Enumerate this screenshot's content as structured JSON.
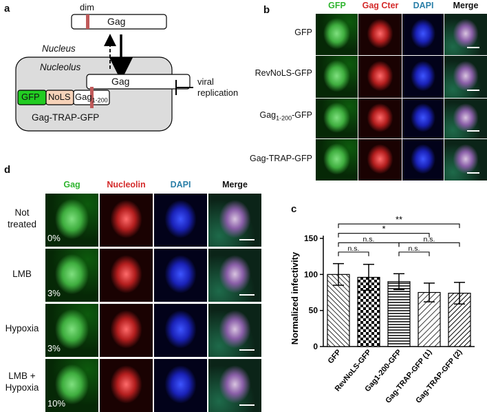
{
  "panel_letters": {
    "a": "a",
    "b": "b",
    "c": "c",
    "d": "d"
  },
  "panel_a": {
    "dim_label": "dim",
    "gag_top": "Gag",
    "nucleus_label": "Nucleus",
    "nucleolus_label": "Nucleolus",
    "gag_inner": "Gag",
    "gfp_box": "GFP",
    "nols_box": "NoLS",
    "gag_small": "Gag",
    "gag_small_sub": "1-200",
    "construct_label": "Gag-TRAP-GFP",
    "viral_label_1": "viral",
    "viral_label_2": "replication",
    "colors": {
      "dim_band": "#c05a5a",
      "gfp_green": "#22cc22",
      "nols_peach": "#f6d2b8",
      "cell_gray": "#dcdcdc"
    }
  },
  "panel_b": {
    "columns": [
      "GFP",
      "Gag Cter",
      "DAPI",
      "Merge"
    ],
    "column_colors": [
      "#2fb52f",
      "#d42a2a",
      "#2a7fa8",
      "#111111"
    ],
    "rows": [
      {
        "label": "GFP"
      },
      {
        "label": "RevNoLS-GFP"
      },
      {
        "label_main": "Gag",
        "label_sub": "1-200",
        "label_tail": "-GFP"
      },
      {
        "label": "Gag-TRAP-GFP"
      }
    ]
  },
  "panel_d": {
    "columns": [
      "Gag",
      "Nucleolin",
      "DAPI",
      "Merge"
    ],
    "column_colors": [
      "#2fb52f",
      "#d42a2a",
      "#2a7fa8",
      "#111111"
    ],
    "rows": [
      {
        "label_1": "Not",
        "label_2": "treated",
        "percent": "0%"
      },
      {
        "label_1": "LMB",
        "label_2": "",
        "percent": "3%"
      },
      {
        "label_1": "Hypoxia",
        "label_2": "",
        "percent": "3%"
      },
      {
        "label_1": "LMB +",
        "label_2": "Hypoxia",
        "percent": "10%"
      }
    ]
  },
  "chart_data": {
    "type": "bar",
    "ylabel": "Normalized infectivity",
    "xlabel": "",
    "ylim": [
      0,
      150
    ],
    "yticks": [
      0,
      50,
      100,
      150
    ],
    "categories": [
      "GFP",
      "RevNoLS-GFP",
      "Gag1-200-GFP",
      "Gag-TRAP-GFP (1)",
      "Gag-TRAP-GFP (2)"
    ],
    "values": [
      100,
      96,
      90,
      75,
      74
    ],
    "errors": [
      15,
      18,
      11,
      13,
      15
    ],
    "patterns": [
      "diag-left",
      "checker",
      "horizontal",
      "diag-right",
      "diag-right-dense"
    ],
    "significance": [
      {
        "from": 0,
        "to": 4,
        "label": "**"
      },
      {
        "from": 0,
        "to": 3,
        "label": "*"
      },
      {
        "from": 0,
        "to": 2,
        "label": "n.s."
      },
      {
        "from": 0,
        "to": 1,
        "label": "n.s."
      },
      {
        "from": 2,
        "to": 4,
        "label": "n.s."
      },
      {
        "from": 2,
        "to": 3,
        "label": "n.s."
      }
    ],
    "grid": false
  }
}
